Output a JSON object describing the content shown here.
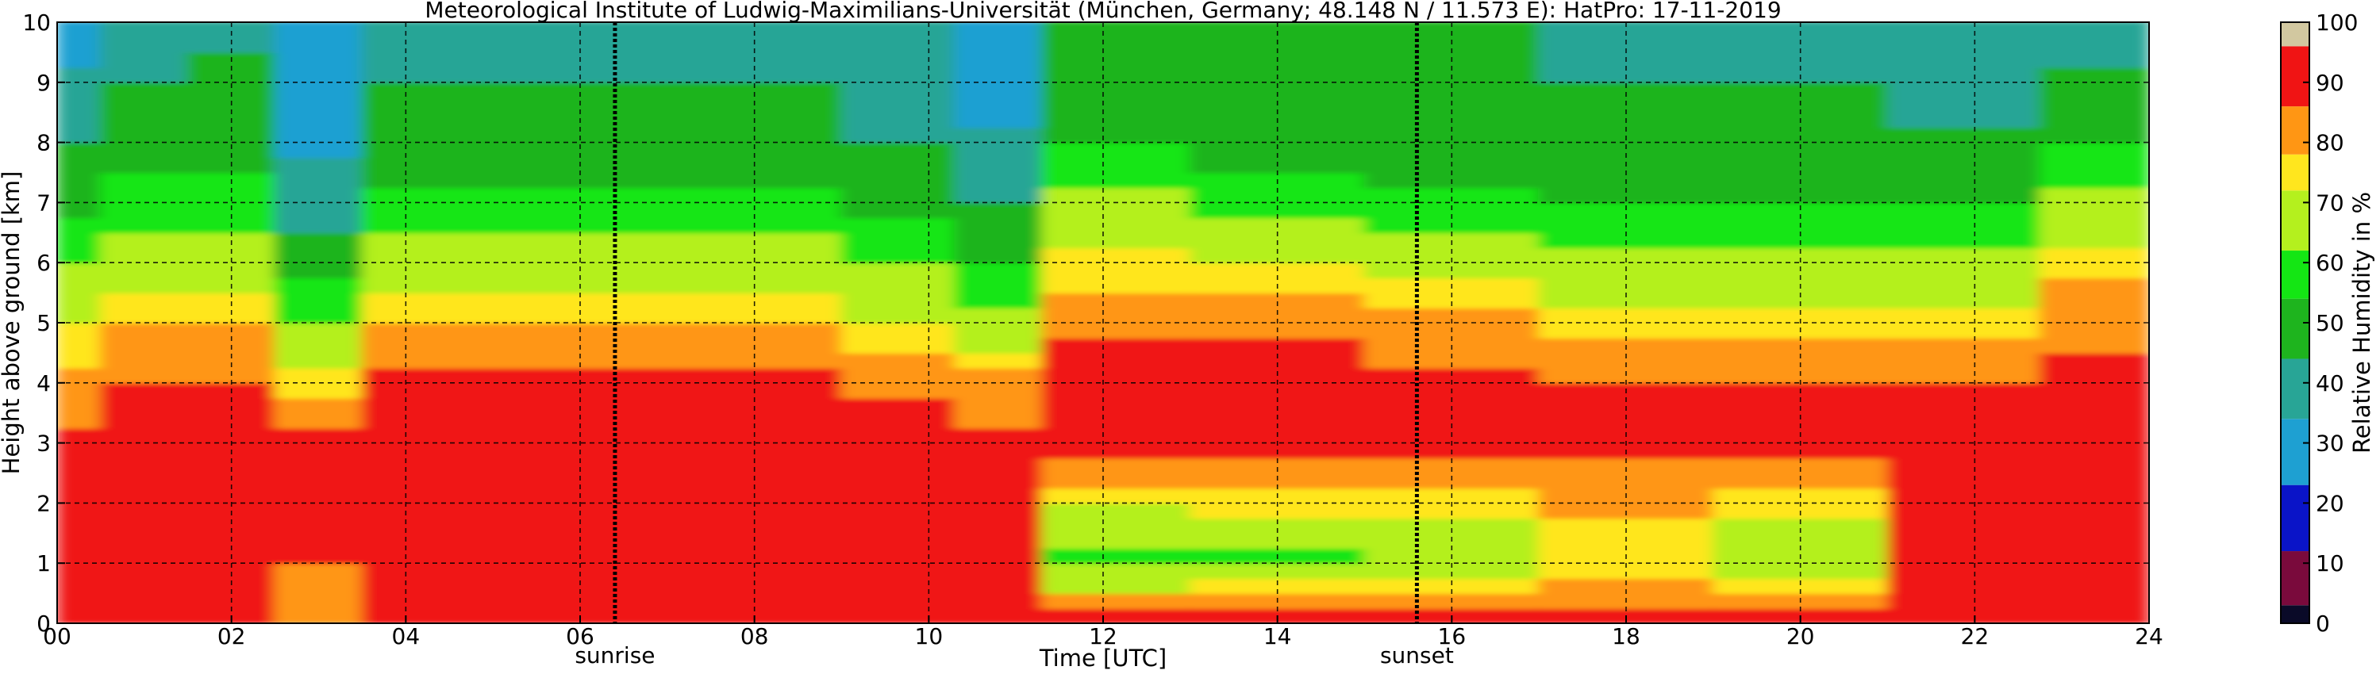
{
  "chart_data": {
    "type": "heatmap",
    "title": "Meteorological Institute of Ludwig-Maximilians-Universität (München, Germany; 48.148 N / 11.573 E):    HatPro: 17-11-2019",
    "xlabel": "Time [UTC]",
    "ylabel": "Height above ground [km]",
    "xlim": [
      0,
      24
    ],
    "ylim": [
      0,
      10
    ],
    "x_ticks": [
      "00",
      "02",
      "04",
      "06",
      "08",
      "10",
      "12",
      "14",
      "16",
      "18",
      "20",
      "22",
      "24"
    ],
    "y_ticks": [
      "0",
      "1",
      "2",
      "3",
      "4",
      "5",
      "6",
      "7",
      "8",
      "9",
      "10"
    ],
    "grid": true,
    "events": [
      {
        "label": "sunrise",
        "time": 6.4
      },
      {
        "label": "sunset",
        "time": 15.6
      }
    ],
    "colorbar": {
      "label": "Relative Humidity in %",
      "ticks": [
        "0",
        "10",
        "20",
        "30",
        "40",
        "50",
        "60",
        "70",
        "80",
        "90",
        "100"
      ],
      "segments": [
        {
          "from": 0,
          "to": 3,
          "color": "#0a0a28"
        },
        {
          "from": 3,
          "to": 12,
          "color": "#7a0a3c"
        },
        {
          "from": 12,
          "to": 23,
          "color": "#0a14c8"
        },
        {
          "from": 23,
          "to": 34,
          "color": "#1ea0d2"
        },
        {
          "from": 34,
          "to": 44,
          "color": "#28a596"
        },
        {
          "from": 44,
          "to": 54,
          "color": "#1eb41e"
        },
        {
          "from": 54,
          "to": 62,
          "color": "#14e614"
        },
        {
          "from": 62,
          "to": 72,
          "color": "#b4f01e"
        },
        {
          "from": 72,
          "to": 78,
          "color": "#ffe61e"
        },
        {
          "from": 78,
          "to": 86,
          "color": "#ff9614"
        },
        {
          "from": 86,
          "to": 96,
          "color": "#f01414"
        },
        {
          "from": 96,
          "to": 100,
          "color": "#d2c8a0"
        }
      ]
    },
    "humidity_profile_columns": [
      {
        "time": 0.0,
        "heights_km": [
          0,
          2,
          3,
          4,
          5,
          6,
          7,
          8,
          9,
          10
        ],
        "rh": [
          92,
          90,
          88,
          80,
          72,
          62,
          52,
          44,
          36,
          30
        ]
      },
      {
        "time": 1.0,
        "heights_km": [
          0,
          2,
          3,
          4,
          5,
          6,
          7,
          8,
          9,
          10
        ],
        "rh": [
          92,
          92,
          90,
          86,
          78,
          68,
          58,
          50,
          44,
          40
        ]
      },
      {
        "time": 2.0,
        "heights_km": [
          0,
          2,
          3,
          4,
          5,
          6,
          7,
          8,
          9,
          10
        ],
        "rh": [
          92,
          92,
          90,
          86,
          78,
          68,
          58,
          50,
          46,
          42
        ]
      },
      {
        "time": 3.0,
        "heights_km": [
          0,
          2,
          3,
          4,
          5,
          6,
          7,
          8,
          9,
          10
        ],
        "rh": [
          82,
          90,
          88,
          76,
          62,
          50,
          40,
          32,
          30,
          28
        ]
      },
      {
        "time": 4.0,
        "heights_km": [
          0,
          2,
          3,
          4,
          5,
          6,
          7,
          8,
          9,
          10
        ],
        "rh": [
          94,
          92,
          91,
          90,
          78,
          66,
          56,
          48,
          44,
          40
        ]
      },
      {
        "time": 6.0,
        "heights_km": [
          0,
          2,
          3,
          4,
          5,
          6,
          7,
          8,
          9,
          10
        ],
        "rh": [
          94,
          92,
          91,
          90,
          78,
          66,
          56,
          48,
          44,
          40
        ]
      },
      {
        "time": 8.0,
        "heights_km": [
          0,
          2,
          3,
          4,
          5,
          6,
          7,
          8,
          9,
          10
        ],
        "rh": [
          92,
          90,
          91,
          90,
          78,
          66,
          56,
          48,
          44,
          40
        ]
      },
      {
        "time": 10.0,
        "heights_km": [
          0,
          2,
          3,
          4,
          5,
          6,
          7,
          8,
          9,
          10
        ],
        "rh": [
          90,
          90,
          90,
          84,
          72,
          62,
          52,
          44,
          38,
          34
        ]
      },
      {
        "time": 10.6,
        "heights_km": [
          0,
          2,
          3,
          4,
          5,
          6,
          7,
          8,
          9,
          10
        ],
        "rh": [
          90,
          90,
          88,
          80,
          66,
          54,
          44,
          36,
          30,
          28
        ]
      },
      {
        "time": 12.0,
        "heights_km": [
          0,
          1,
          2,
          3,
          4,
          5,
          6,
          7,
          8,
          9,
          10
        ],
        "rh": [
          92,
          58,
          72,
          88,
          90,
          84,
          74,
          64,
          54,
          48,
          44
        ]
      },
      {
        "time": 14.0,
        "heights_km": [
          0,
          1,
          2,
          3,
          4,
          5,
          6,
          7,
          8,
          9,
          10
        ],
        "rh": [
          92,
          60,
          74,
          88,
          90,
          84,
          72,
          60,
          50,
          46,
          44
        ]
      },
      {
        "time": 16.0,
        "heights_km": [
          0,
          1,
          2,
          3,
          4,
          5,
          6,
          7,
          8,
          9,
          10
        ],
        "rh": [
          92,
          62,
          76,
          88,
          88,
          80,
          68,
          56,
          50,
          46,
          44
        ]
      },
      {
        "time": 18.0,
        "heights_km": [
          0,
          1,
          2,
          3,
          4,
          5,
          6,
          7,
          8,
          9,
          10
        ],
        "rh": [
          92,
          74,
          80,
          88,
          86,
          76,
          64,
          54,
          48,
          44,
          42
        ]
      },
      {
        "time": 20.0,
        "heights_km": [
          0,
          1,
          2,
          3,
          4,
          5,
          6,
          7,
          8,
          9,
          10
        ],
        "rh": [
          92,
          64,
          76,
          88,
          86,
          76,
          64,
          54,
          48,
          44,
          42
        ]
      },
      {
        "time": 22.0,
        "heights_km": [
          0,
          2,
          3,
          4,
          5,
          6,
          7,
          8,
          9,
          10
        ],
        "rh": [
          94,
          92,
          90,
          86,
          76,
          64,
          54,
          46,
          40,
          34
        ]
      },
      {
        "time": 23.5,
        "heights_km": [
          0,
          2,
          3,
          4,
          5,
          6,
          7,
          8,
          9,
          10
        ],
        "rh": [
          92,
          92,
          90,
          88,
          84,
          76,
          64,
          54,
          46,
          40
        ]
      }
    ]
  }
}
